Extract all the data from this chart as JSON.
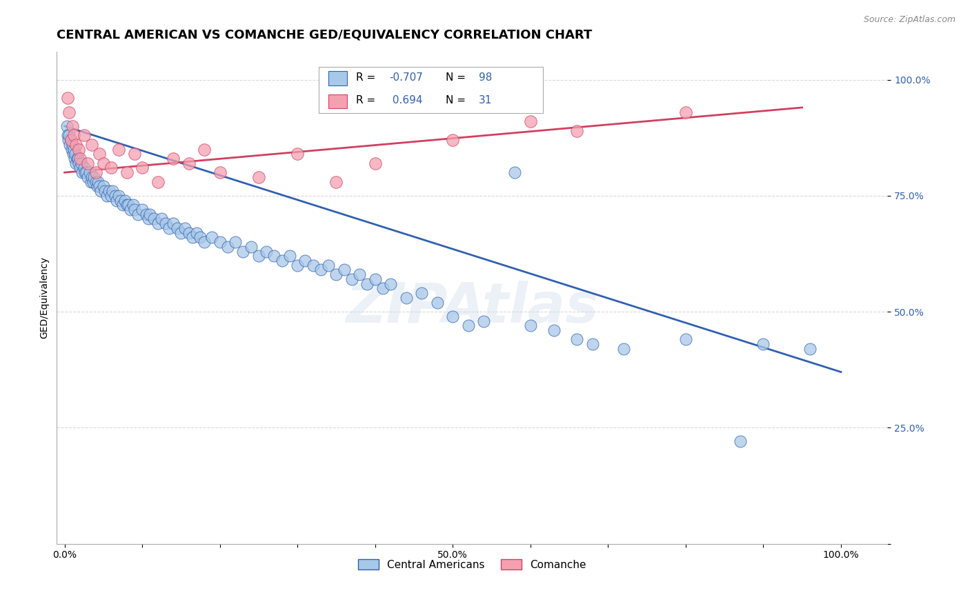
{
  "title": "CENTRAL AMERICAN VS COMANCHE GED/EQUIVALENCY CORRELATION CHART",
  "source": "Source: ZipAtlas.com",
  "ylabel": "GED/Equivalency",
  "blue_color": "#a8c8e8",
  "pink_color": "#f4a0b0",
  "blue_line_color": "#3060b0",
  "pink_line_color": "#d04060",
  "watermark": "ZIPAtlas",
  "blue_scatter": [
    [
      0.003,
      0.9
    ],
    [
      0.004,
      0.88
    ],
    [
      0.005,
      0.87
    ],
    [
      0.006,
      0.88
    ],
    [
      0.007,
      0.86
    ],
    [
      0.008,
      0.87
    ],
    [
      0.009,
      0.85
    ],
    [
      0.01,
      0.86
    ],
    [
      0.011,
      0.84
    ],
    [
      0.012,
      0.85
    ],
    [
      0.013,
      0.83
    ],
    [
      0.014,
      0.84
    ],
    [
      0.015,
      0.82
    ],
    [
      0.016,
      0.83
    ],
    [
      0.017,
      0.83
    ],
    [
      0.018,
      0.82
    ],
    [
      0.02,
      0.81
    ],
    [
      0.022,
      0.82
    ],
    [
      0.023,
      0.8
    ],
    [
      0.025,
      0.81
    ],
    [
      0.026,
      0.8
    ],
    [
      0.028,
      0.8
    ],
    [
      0.03,
      0.79
    ],
    [
      0.032,
      0.8
    ],
    [
      0.034,
      0.78
    ],
    [
      0.035,
      0.79
    ],
    [
      0.037,
      0.78
    ],
    [
      0.038,
      0.79
    ],
    [
      0.04,
      0.78
    ],
    [
      0.042,
      0.77
    ],
    [
      0.043,
      0.78
    ],
    [
      0.045,
      0.77
    ],
    [
      0.047,
      0.76
    ],
    [
      0.05,
      0.77
    ],
    [
      0.052,
      0.76
    ],
    [
      0.055,
      0.75
    ],
    [
      0.057,
      0.76
    ],
    [
      0.06,
      0.75
    ],
    [
      0.062,
      0.76
    ],
    [
      0.065,
      0.75
    ],
    [
      0.067,
      0.74
    ],
    [
      0.07,
      0.75
    ],
    [
      0.072,
      0.74
    ],
    [
      0.075,
      0.73
    ],
    [
      0.078,
      0.74
    ],
    [
      0.08,
      0.73
    ],
    [
      0.082,
      0.73
    ],
    [
      0.085,
      0.72
    ],
    [
      0.088,
      0.73
    ],
    [
      0.09,
      0.72
    ],
    [
      0.095,
      0.71
    ],
    [
      0.1,
      0.72
    ],
    [
      0.105,
      0.71
    ],
    [
      0.108,
      0.7
    ],
    [
      0.11,
      0.71
    ],
    [
      0.115,
      0.7
    ],
    [
      0.12,
      0.69
    ],
    [
      0.125,
      0.7
    ],
    [
      0.13,
      0.69
    ],
    [
      0.135,
      0.68
    ],
    [
      0.14,
      0.69
    ],
    [
      0.145,
      0.68
    ],
    [
      0.15,
      0.67
    ],
    [
      0.155,
      0.68
    ],
    [
      0.16,
      0.67
    ],
    [
      0.165,
      0.66
    ],
    [
      0.17,
      0.67
    ],
    [
      0.175,
      0.66
    ],
    [
      0.18,
      0.65
    ],
    [
      0.19,
      0.66
    ],
    [
      0.2,
      0.65
    ],
    [
      0.21,
      0.64
    ],
    [
      0.22,
      0.65
    ],
    [
      0.23,
      0.63
    ],
    [
      0.24,
      0.64
    ],
    [
      0.25,
      0.62
    ],
    [
      0.26,
      0.63
    ],
    [
      0.27,
      0.62
    ],
    [
      0.28,
      0.61
    ],
    [
      0.29,
      0.62
    ],
    [
      0.3,
      0.6
    ],
    [
      0.31,
      0.61
    ],
    [
      0.32,
      0.6
    ],
    [
      0.33,
      0.59
    ],
    [
      0.34,
      0.6
    ],
    [
      0.35,
      0.58
    ],
    [
      0.36,
      0.59
    ],
    [
      0.37,
      0.57
    ],
    [
      0.38,
      0.58
    ],
    [
      0.39,
      0.56
    ],
    [
      0.4,
      0.57
    ],
    [
      0.41,
      0.55
    ],
    [
      0.42,
      0.56
    ],
    [
      0.44,
      0.53
    ],
    [
      0.46,
      0.54
    ],
    [
      0.48,
      0.52
    ],
    [
      0.5,
      0.49
    ],
    [
      0.52,
      0.47
    ],
    [
      0.54,
      0.48
    ],
    [
      0.58,
      0.8
    ],
    [
      0.6,
      0.47
    ],
    [
      0.63,
      0.46
    ],
    [
      0.66,
      0.44
    ],
    [
      0.68,
      0.43
    ],
    [
      0.72,
      0.42
    ],
    [
      0.8,
      0.44
    ],
    [
      0.87,
      0.22
    ],
    [
      0.9,
      0.43
    ],
    [
      0.96,
      0.42
    ]
  ],
  "pink_scatter": [
    [
      0.004,
      0.96
    ],
    [
      0.006,
      0.93
    ],
    [
      0.008,
      0.87
    ],
    [
      0.01,
      0.9
    ],
    [
      0.012,
      0.88
    ],
    [
      0.015,
      0.86
    ],
    [
      0.018,
      0.85
    ],
    [
      0.02,
      0.83
    ],
    [
      0.025,
      0.88
    ],
    [
      0.03,
      0.82
    ],
    [
      0.035,
      0.86
    ],
    [
      0.04,
      0.8
    ],
    [
      0.045,
      0.84
    ],
    [
      0.05,
      0.82
    ],
    [
      0.06,
      0.81
    ],
    [
      0.07,
      0.85
    ],
    [
      0.08,
      0.8
    ],
    [
      0.09,
      0.84
    ],
    [
      0.1,
      0.81
    ],
    [
      0.12,
      0.78
    ],
    [
      0.14,
      0.83
    ],
    [
      0.16,
      0.82
    ],
    [
      0.18,
      0.85
    ],
    [
      0.2,
      0.8
    ],
    [
      0.25,
      0.79
    ],
    [
      0.3,
      0.84
    ],
    [
      0.35,
      0.78
    ],
    [
      0.4,
      0.82
    ],
    [
      0.5,
      0.87
    ],
    [
      0.6,
      0.91
    ],
    [
      0.66,
      0.89
    ],
    [
      0.8,
      0.93
    ]
  ],
  "blue_line_x": [
    0.0,
    1.0
  ],
  "blue_line_y": [
    0.9,
    0.37
  ],
  "pink_line_x": [
    0.0,
    0.95
  ],
  "pink_line_y": [
    0.8,
    0.94
  ],
  "ylim": [
    0.0,
    1.06
  ],
  "xlim": [
    -0.01,
    1.06
  ],
  "yticks": [
    0.0,
    0.25,
    0.5,
    0.75,
    1.0
  ],
  "ytick_labels": [
    "",
    "25.0%",
    "50.0%",
    "75.0%",
    "100.0%"
  ],
  "grid_color": "#d8d8d8",
  "title_fontsize": 13,
  "label_fontsize": 10,
  "tick_fontsize": 10,
  "source_fontsize": 9,
  "background_color": "#ffffff"
}
